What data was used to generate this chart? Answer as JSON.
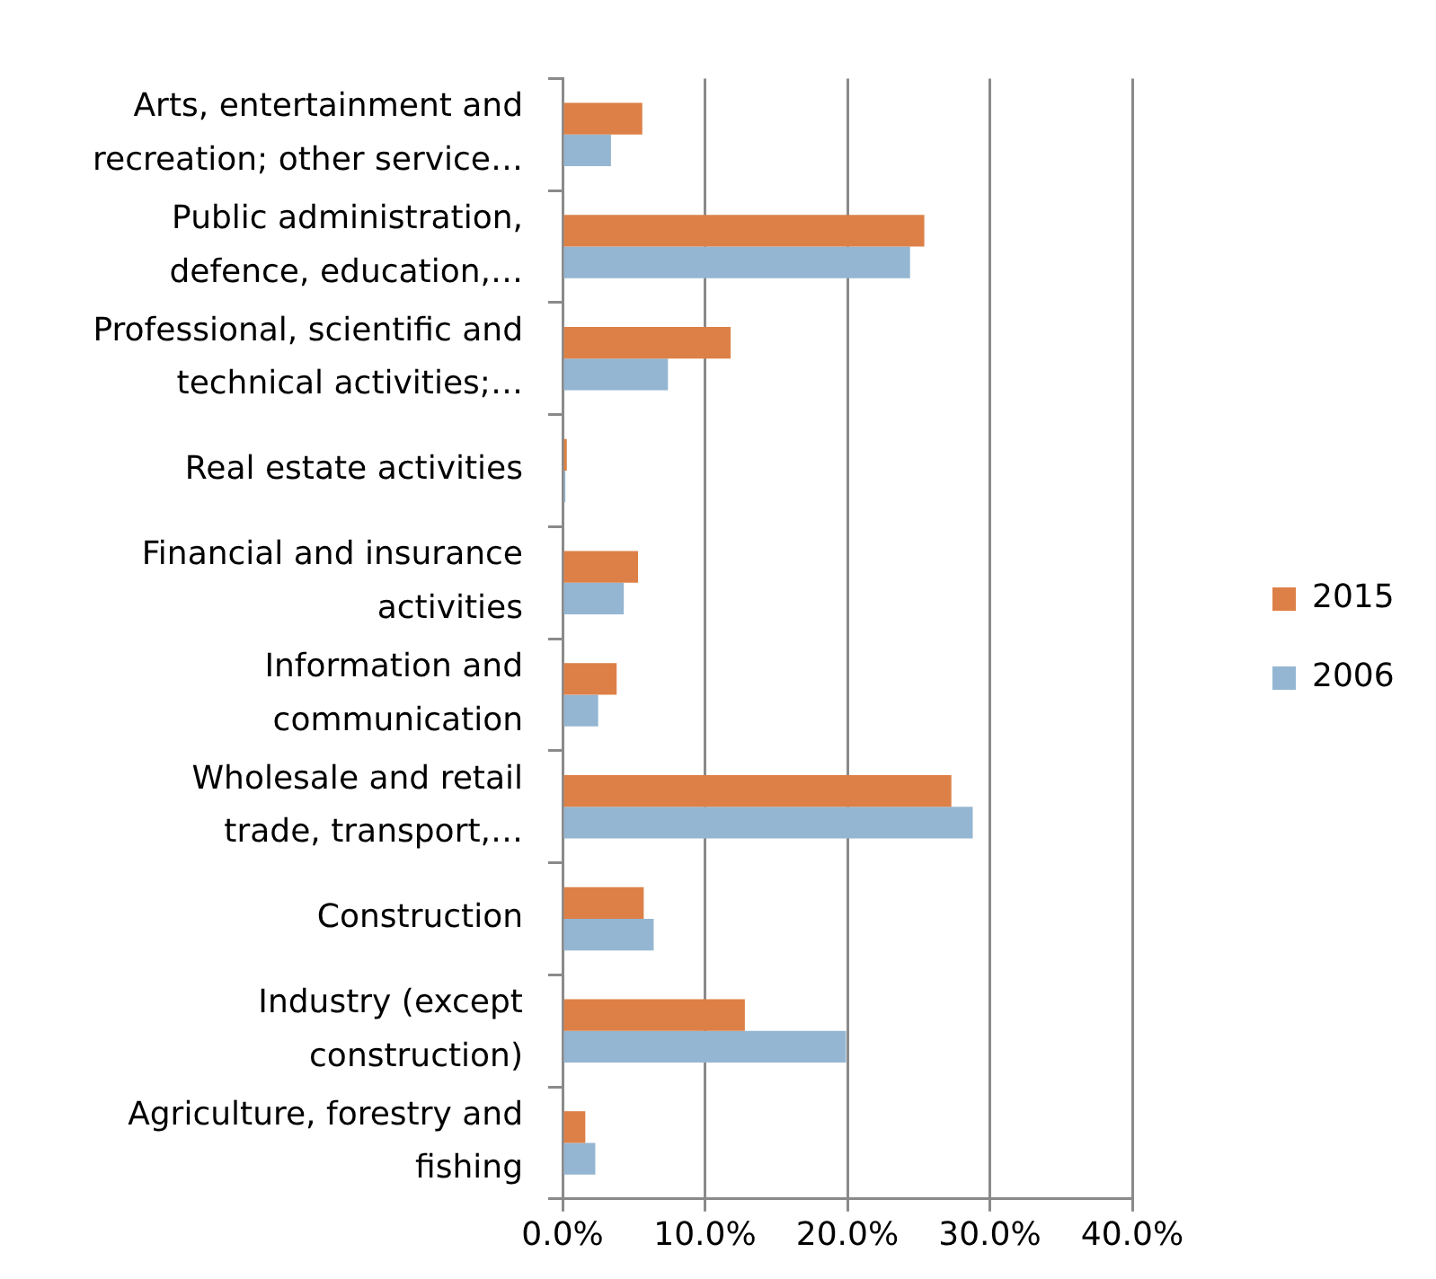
{
  "chart_data": {
    "type": "bar",
    "orientation": "horizontal",
    "categories": [
      "Arts, entertainment and recreation; other service…",
      "Public administration, defence, education,…",
      "Professional, scientific and technical activities;…",
      "Real estate activities",
      "Financial and insurance activities",
      "Information and communication",
      "Wholesale and retail trade, transport,…",
      "Construction",
      "Industry (except construction)",
      "Agriculture, forestry and fishing"
    ],
    "series": [
      {
        "name": "2015",
        "color": "#dd8047",
        "values": [
          5.6,
          25.4,
          11.8,
          0.3,
          5.3,
          3.8,
          27.3,
          5.7,
          12.8,
          1.6
        ]
      },
      {
        "name": "2006",
        "color": "#94b6d2",
        "values": [
          3.4,
          24.4,
          7.4,
          0.2,
          4.3,
          2.5,
          28.8,
          6.4,
          19.9,
          2.3
        ]
      }
    ],
    "xlim": [
      0,
      40
    ],
    "xticks": [
      {
        "value": 0,
        "label": "0.0%"
      },
      {
        "value": 10,
        "label": "10.0%"
      },
      {
        "value": 20,
        "label": "20.0%"
      },
      {
        "value": 30,
        "label": "30.0%"
      },
      {
        "value": 40,
        "label": "40.0%"
      }
    ],
    "grid": "x",
    "legend": "right"
  }
}
